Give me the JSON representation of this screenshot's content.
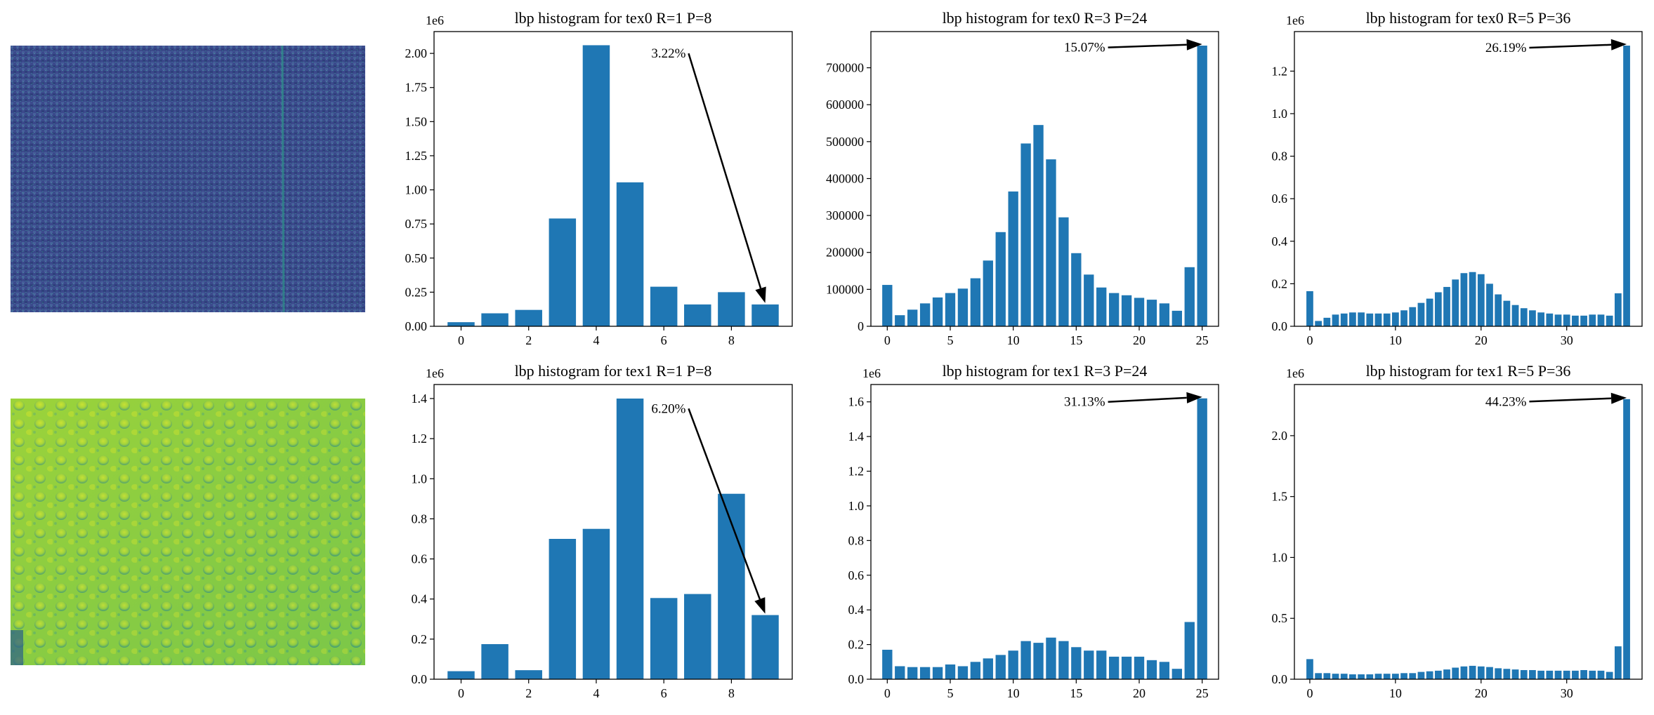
{
  "colors": {
    "bar": "#1f77b4",
    "axis": "#000000",
    "annotation": "#000000",
    "tex0_base": "#3b4a8c",
    "tex0_thread": "#2e8f8a",
    "tex1_base": "#7cc740",
    "tex1_light": "#c6e02b",
    "tex1_dark": "#2a8a88"
  },
  "images": [
    {
      "name": "tex0",
      "description_icon": "woven-fabric-texture-image"
    },
    {
      "name": "tex1",
      "description_icon": "bumpy-green-texture-image"
    }
  ],
  "chart_data": [
    {
      "type": "bar",
      "title": "lbp histogram for tex0 R=1 P=8",
      "x": [
        0,
        1,
        2,
        3,
        4,
        5,
        6,
        7,
        8,
        9
      ],
      "values": [
        30000,
        95000,
        120000,
        790000,
        2060000,
        1055000,
        290000,
        160000,
        250000,
        160000
      ],
      "xlim": [
        -0.8,
        9.8
      ],
      "ylim": [
        0,
        2.16
      ],
      "yscale": 1000000,
      "scale_label": "1e6",
      "xticks": [
        0,
        2,
        4,
        6,
        8
      ],
      "yticks": [
        0,
        0.25,
        0.5,
        0.75,
        1.0,
        1.25,
        1.5,
        1.75,
        2.0
      ],
      "ytick_labels": [
        "0.00",
        "0.25",
        "0.50",
        "0.75",
        "1.00",
        "1.25",
        "1.50",
        "1.75",
        "2.00"
      ],
      "annotation": {
        "text": "3.22%",
        "text_x": 6.65,
        "text_y": 2.0,
        "target_x": 9,
        "target_y": 0.16
      },
      "grid": false
    },
    {
      "type": "bar",
      "title": "lbp histogram for tex0 R=3 P=24",
      "x": [
        0,
        1,
        2,
        3,
        4,
        5,
        6,
        7,
        8,
        9,
        10,
        11,
        12,
        13,
        14,
        15,
        16,
        17,
        18,
        19,
        20,
        21,
        22,
        23,
        24,
        25
      ],
      "values": [
        112000,
        30000,
        45000,
        62000,
        78000,
        90000,
        102000,
        130000,
        178000,
        255000,
        365000,
        495000,
        545000,
        452000,
        295000,
        198000,
        140000,
        105000,
        90000,
        84000,
        77000,
        72000,
        62000,
        42000,
        160000,
        760000
      ],
      "xlim": [
        -1.3,
        26.3
      ],
      "ylim": [
        0,
        798000
      ],
      "yscale": 1,
      "scale_label": "",
      "xticks": [
        0,
        5,
        10,
        15,
        20,
        25
      ],
      "yticks": [
        0,
        100000,
        200000,
        300000,
        400000,
        500000,
        600000,
        700000
      ],
      "ytick_labels": [
        "0",
        "100000",
        "200000",
        "300000",
        "400000",
        "500000",
        "600000",
        "700000"
      ],
      "annotation": {
        "text": "15.07%",
        "text_x": 17.3,
        "text_y": 755000,
        "target_x": 25,
        "target_y": 760000
      },
      "grid": false
    },
    {
      "type": "bar",
      "title": "lbp histogram for tex0 R=5 P=36",
      "x": [
        0,
        1,
        2,
        3,
        4,
        5,
        6,
        7,
        8,
        9,
        10,
        11,
        12,
        13,
        14,
        15,
        16,
        17,
        18,
        19,
        20,
        21,
        22,
        23,
        24,
        25,
        26,
        27,
        28,
        29,
        30,
        31,
        32,
        33,
        34,
        35,
        36,
        37
      ],
      "values": [
        0.165,
        0.025,
        0.04,
        0.055,
        0.06,
        0.065,
        0.065,
        0.06,
        0.06,
        0.06,
        0.065,
        0.075,
        0.09,
        0.11,
        0.13,
        0.16,
        0.185,
        0.22,
        0.25,
        0.255,
        0.245,
        0.2,
        0.15,
        0.12,
        0.1,
        0.085,
        0.075,
        0.065,
        0.06,
        0.055,
        0.055,
        0.05,
        0.05,
        0.055,
        0.055,
        0.05,
        0.155,
        1.32
      ],
      "xlim": [
        -1.8,
        38.8
      ],
      "ylim": [
        0,
        1.386
      ],
      "yscale": 1000000,
      "scale_label": "1e6",
      "xticks": [
        0,
        10,
        20,
        30
      ],
      "yticks": [
        0,
        0.2,
        0.4,
        0.6,
        0.8,
        1.0,
        1.2
      ],
      "ytick_labels": [
        "0.0",
        "0.2",
        "0.4",
        "0.6",
        "0.8",
        "1.0",
        "1.2"
      ],
      "annotation": {
        "text": "26.19%",
        "text_x": 25.3,
        "text_y": 1.31,
        "target_x": 37,
        "target_y": 1.32
      },
      "grid": false
    },
    {
      "type": "bar",
      "title": "lbp histogram for tex1 R=1 P=8",
      "x": [
        0,
        1,
        2,
        3,
        4,
        5,
        6,
        7,
        8,
        9
      ],
      "values": [
        40000,
        175000,
        45000,
        700000,
        750000,
        1400000,
        405000,
        425000,
        925000,
        320000
      ],
      "xlim": [
        -0.8,
        9.8
      ],
      "ylim": [
        0,
        1.47
      ],
      "yscale": 1000000,
      "scale_label": "1e6",
      "xticks": [
        0,
        2,
        4,
        6,
        8
      ],
      "yticks": [
        0,
        0.2,
        0.4,
        0.6,
        0.8,
        1.0,
        1.2,
        1.4
      ],
      "ytick_labels": [
        "0.0",
        "0.2",
        "0.4",
        "0.6",
        "0.8",
        "1.0",
        "1.2",
        "1.4"
      ],
      "annotation": {
        "text": "6.20%",
        "text_x": 6.65,
        "text_y": 1.35,
        "target_x": 9,
        "target_y": 0.32
      },
      "grid": false
    },
    {
      "type": "bar",
      "title": "lbp histogram for tex1 R=3 P=24",
      "x": [
        0,
        1,
        2,
        3,
        4,
        5,
        6,
        7,
        8,
        9,
        10,
        11,
        12,
        13,
        14,
        15,
        16,
        17,
        18,
        19,
        20,
        21,
        22,
        23,
        24,
        25
      ],
      "values": [
        0.17,
        0.075,
        0.07,
        0.07,
        0.07,
        0.085,
        0.075,
        0.1,
        0.12,
        0.14,
        0.165,
        0.22,
        0.21,
        0.24,
        0.22,
        0.185,
        0.165,
        0.165,
        0.13,
        0.13,
        0.13,
        0.11,
        0.1,
        0.06,
        0.33,
        1.62
      ],
      "xlim": [
        -1.3,
        26.3
      ],
      "ylim": [
        0,
        1.7
      ],
      "yscale": 1000000,
      "scale_label": "1e6",
      "xticks": [
        0,
        5,
        10,
        15,
        20,
        25
      ],
      "yticks": [
        0,
        0.2,
        0.4,
        0.6,
        0.8,
        1.0,
        1.2,
        1.4,
        1.6
      ],
      "ytick_labels": [
        "0.0",
        "0.2",
        "0.4",
        "0.6",
        "0.8",
        "1.0",
        "1.2",
        "1.4",
        "1.6"
      ],
      "annotation": {
        "text": "31.13%",
        "text_x": 17.3,
        "text_y": 1.6,
        "target_x": 25,
        "target_y": 1.62
      },
      "grid": false
    },
    {
      "type": "bar",
      "title": "lbp histogram for tex1 R=5 P=36",
      "x": [
        0,
        1,
        2,
        3,
        4,
        5,
        6,
        7,
        8,
        9,
        10,
        11,
        12,
        13,
        14,
        15,
        16,
        17,
        18,
        19,
        20,
        21,
        22,
        23,
        24,
        25,
        26,
        27,
        28,
        29,
        30,
        31,
        32,
        33,
        34,
        35,
        36,
        37
      ],
      "values": [
        0.165,
        0.05,
        0.05,
        0.045,
        0.045,
        0.04,
        0.04,
        0.04,
        0.045,
        0.045,
        0.045,
        0.05,
        0.05,
        0.06,
        0.065,
        0.07,
        0.08,
        0.095,
        0.105,
        0.11,
        0.105,
        0.1,
        0.09,
        0.085,
        0.08,
        0.075,
        0.075,
        0.07,
        0.07,
        0.07,
        0.07,
        0.07,
        0.075,
        0.07,
        0.07,
        0.06,
        0.27,
        2.3
      ],
      "xlim": [
        -1.8,
        38.8
      ],
      "ylim": [
        0,
        2.42
      ],
      "yscale": 1000000,
      "scale_label": "1e6",
      "xticks": [
        0,
        10,
        20,
        30
      ],
      "yticks": [
        0,
        0.5,
        1.0,
        1.5,
        2.0
      ],
      "ytick_labels": [
        "0.0",
        "0.5",
        "1.0",
        "1.5",
        "2.0"
      ],
      "annotation": {
        "text": "44.23%",
        "text_x": 25.3,
        "text_y": 2.28,
        "target_x": 37,
        "target_y": 2.3
      },
      "grid": false
    }
  ]
}
